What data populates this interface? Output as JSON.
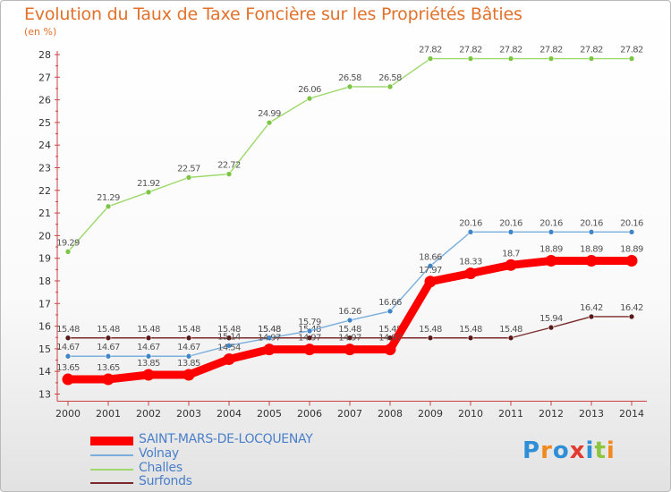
{
  "title": "Evolution du Taux de Taxe Foncière sur les Propriétés Bâties",
  "unit_label": "(en %)",
  "brand": {
    "text": "Proxiti",
    "letter_colors": [
      "#2f8ed8",
      "#f08a1c",
      "#2f8ed8",
      "#e23a2f",
      "#2f8ed8",
      "#8cc63f",
      "#f08a1c"
    ]
  },
  "chart_data": {
    "type": "line",
    "x": [
      "2000",
      "2001",
      "2002",
      "2003",
      "2004",
      "2005",
      "2006",
      "2007",
      "2008",
      "2009",
      "2010",
      "2011",
      "2012",
      "2013",
      "2014"
    ],
    "ylim": [
      13,
      28
    ],
    "yticks": [
      13,
      14,
      15,
      16,
      17,
      18,
      19,
      20,
      21,
      22,
      23,
      24,
      25,
      26,
      27,
      28
    ],
    "grid": false,
    "legend_position": "bottom-left",
    "series": [
      {
        "name": "Surfonds",
        "color": "#7a2a2a",
        "marker": "#5a1a1a",
        "values": [
          15.48,
          15.48,
          15.48,
          15.48,
          15.48,
          15.48,
          15.48,
          15.48,
          15.48,
          15.48,
          15.48,
          15.48,
          15.94,
          16.42,
          16.42
        ],
        "labels": [
          "15.48",
          "15.48",
          "15.48",
          "15.48",
          "15.48",
          "15.48",
          "15.48",
          "15.48",
          "15.48",
          "15.48",
          "15.48",
          "15.48",
          "15.94",
          "16.42",
          "16.42"
        ]
      },
      {
        "name": "Challes",
        "color": "#9dd86a",
        "marker": "#7cc545",
        "values": [
          19.29,
          21.29,
          21.92,
          22.57,
          22.72,
          24.99,
          26.06,
          26.58,
          26.58,
          27.82,
          27.82,
          27.82,
          27.82,
          27.82,
          27.82
        ],
        "labels": [
          "19.29",
          "21.29",
          "21.92",
          "22.57",
          "22.72",
          "24.99",
          "26.06",
          "26.58",
          "26.58",
          "27.82",
          "27.82",
          "27.82",
          "27.82",
          "27.82",
          "27.82"
        ]
      },
      {
        "name": "Volnay",
        "color": "#7aaedc",
        "marker": "#3f86c8",
        "values": [
          14.67,
          14.67,
          14.67,
          14.67,
          15.14,
          15.48,
          15.79,
          16.26,
          16.66,
          18.66,
          20.16,
          20.16,
          20.16,
          20.16,
          20.16
        ],
        "labels": [
          "14.67",
          "14.67",
          "14.67",
          "14.67",
          "15.14",
          "15.48",
          "15.79",
          "16.26",
          "16.66",
          "18.66",
          "20.16",
          "20.16",
          "20.16",
          "20.16",
          "20.16"
        ]
      },
      {
        "name": "SAINT-MARS-DE-LOCQUENAY",
        "color": "#ff0000",
        "marker": "#ff0000",
        "values": [
          13.65,
          13.65,
          13.85,
          13.85,
          14.54,
          14.97,
          14.97,
          14.97,
          14.97,
          17.97,
          18.33,
          18.7,
          18.89,
          18.89,
          18.89
        ],
        "labels": [
          "13.65",
          "13.65",
          "13.85",
          "13.85",
          "14.54",
          "14.97",
          "14.97",
          "14.97",
          "14.97",
          "17.97",
          "18.33",
          "18.7",
          "18.89",
          "18.89",
          "18.89"
        ]
      }
    ],
    "legend_order": [
      "SAINT-MARS-DE-LOCQUENAY",
      "Volnay",
      "Challes",
      "Surfonds"
    ]
  }
}
